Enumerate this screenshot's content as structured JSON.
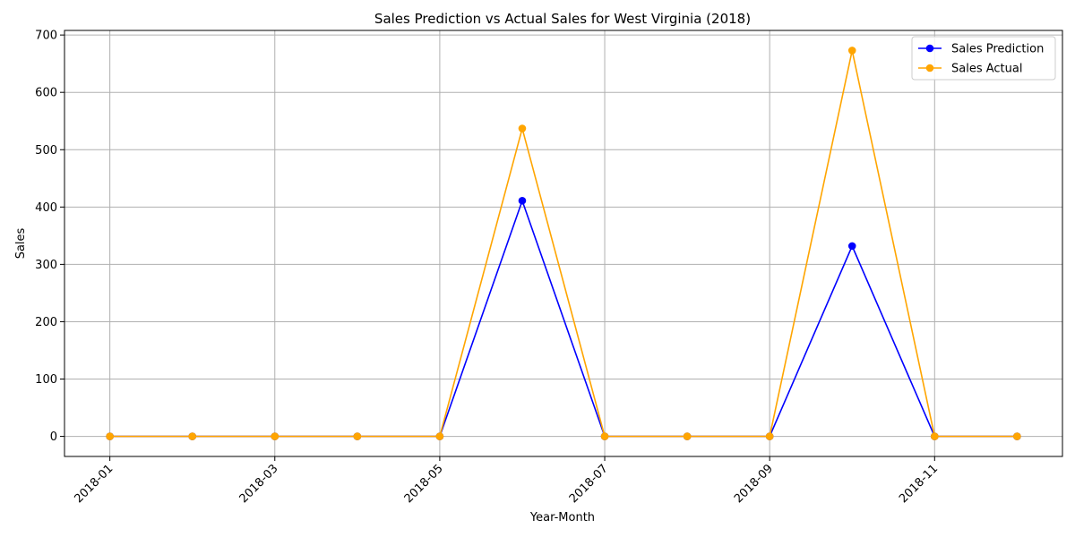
{
  "chart_data": {
    "type": "line",
    "title": "Sales Prediction vs Actual Sales for West Virginia (2018)",
    "xlabel": "Year-Month",
    "ylabel": "Sales",
    "x": [
      "2018-01",
      "2018-02",
      "2018-03",
      "2018-04",
      "2018-05",
      "2018-06",
      "2018-07",
      "2018-08",
      "2018-09",
      "2018-10",
      "2018-11",
      "2018-12"
    ],
    "x_ticks": [
      "2018-01",
      "2018-03",
      "2018-05",
      "2018-07",
      "2018-09",
      "2018-11"
    ],
    "y_ticks": [
      0,
      100,
      200,
      300,
      400,
      500,
      600,
      700
    ],
    "ylim": [
      -35,
      708
    ],
    "grid": true,
    "legend_position": "top-right",
    "series": [
      {
        "name": "Sales Prediction",
        "color": "#0000ff",
        "marker": "circle",
        "values": [
          0,
          0,
          0,
          0,
          0,
          411,
          0,
          0,
          0,
          332,
          0,
          0
        ]
      },
      {
        "name": "Sales Actual",
        "color": "#ffa500",
        "marker": "circle",
        "values": [
          0,
          0,
          0,
          0,
          0,
          537,
          0,
          0,
          0,
          673,
          0,
          0
        ]
      }
    ]
  }
}
